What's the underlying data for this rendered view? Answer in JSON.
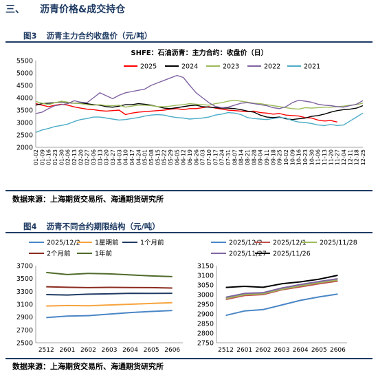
{
  "section": {
    "number": "三、",
    "title": "沥青价格&成交持仓"
  },
  "figure3": {
    "label": "图3",
    "caption": "沥青主力合约收盘价（元/吨）",
    "source": "数据来源：上海期货交易所、海通期货研究所"
  },
  "figure4": {
    "label": "图4",
    "caption": "沥青不同合约期限结构（元/吨）",
    "source": "数据来源：上海期货交易所、海通期货研究所"
  },
  "chart_data": [
    {
      "type": "line",
      "title": "SHFE：石油沥青：主力合约：收盘价（日）",
      "ylim": [
        2000,
        5500
      ],
      "yticks": [
        2000,
        2500,
        3000,
        3500,
        4000,
        4500,
        5000,
        5500
      ],
      "categories": [
        "01-02",
        "01-09",
        "01-16",
        "01-23",
        "01-30",
        "02-06",
        "02-13",
        "02-20",
        "02-27",
        "03-06",
        "03-13",
        "03-20",
        "03-27",
        "04-03",
        "04-10",
        "04-17",
        "04-24",
        "05-01",
        "05-08",
        "05-15",
        "05-22",
        "05-29",
        "06-05",
        "06-12",
        "06-19",
        "06-26",
        "07-03",
        "07-10",
        "07-17",
        "07-24",
        "07-31",
        "08-07",
        "08-14",
        "08-21",
        "08-28",
        "09-04",
        "09-11",
        "09-18",
        "09-25",
        "10-02",
        "10-09",
        "10-16",
        "10-23",
        "10-30",
        "11-06",
        "11-13",
        "11-20",
        "11-27",
        "12-04",
        "12-11",
        "12-18",
        "12-25"
      ],
      "legend_position": "top",
      "colors": {
        "2025": "#ff0000",
        "2024": "#000000",
        "2023": "#9bbb59",
        "2022": "#8064a2",
        "2021": "#4bacc6"
      },
      "series": [
        {
          "name": "2025",
          "values": [
            3760,
            3700,
            3640,
            3700,
            3740,
            3700,
            3630,
            3580,
            3540,
            3520,
            3480,
            3460,
            3480,
            3500,
            3320,
            3380,
            3420,
            3440,
            3460,
            3480,
            3500,
            3540,
            3560,
            3520,
            3560,
            3560,
            3600,
            3640,
            3580,
            3540,
            3500,
            3480,
            3460,
            3440,
            3460,
            3400,
            3380,
            3340,
            3360,
            3300,
            3280,
            3260,
            3200,
            3180,
            3100,
            3060,
            3080,
            3020,
            null,
            null,
            null,
            null
          ]
        },
        {
          "name": "2024",
          "values": [
            3700,
            3760,
            3780,
            3800,
            3840,
            3800,
            3780,
            3780,
            3760,
            3720,
            3700,
            3640,
            3620,
            3660,
            3720,
            3720,
            3760,
            3740,
            3700,
            3640,
            3580,
            3560,
            3600,
            3640,
            3680,
            3700,
            3640,
            3620,
            3600,
            3580,
            3580,
            3560,
            3520,
            3460,
            3420,
            3300,
            3220,
            3200,
            3220,
            3150,
            3120,
            3150,
            3180,
            3250,
            3280,
            3340,
            3420,
            3480,
            3520,
            3540,
            3580,
            3680
          ]
        },
        {
          "name": "2023",
          "values": [
            3850,
            3780,
            3720,
            3800,
            3860,
            3820,
            3780,
            3760,
            3720,
            3700,
            3720,
            3680,
            3680,
            3700,
            3620,
            3660,
            3700,
            3700,
            3680,
            3640,
            3640,
            3660,
            3700,
            3720,
            3760,
            3740,
            3720,
            3700,
            3760,
            3800,
            3860,
            3900,
            3860,
            3820,
            3780,
            3760,
            3720,
            3680,
            3640,
            3600,
            3560,
            3540,
            3600,
            3580,
            3600,
            3620,
            3620,
            3640,
            3660,
            3700,
            3720,
            3780
          ]
        },
        {
          "name": "2022",
          "values": [
            3360,
            3420,
            3560,
            3680,
            3720,
            3760,
            3880,
            3820,
            3800,
            4000,
            4200,
            4080,
            3960,
            4100,
            4200,
            4250,
            4300,
            4350,
            4500,
            4600,
            4700,
            4800,
            4900,
            4820,
            4500,
            4200,
            4000,
            3800,
            3650,
            3600,
            3620,
            3700,
            3780,
            3800,
            3760,
            3720,
            3680,
            3600,
            3560,
            3640,
            3800,
            3900,
            3860,
            3820,
            3740,
            3700,
            3680,
            3640,
            3620,
            3680,
            3740,
            3880
          ]
        },
        {
          "name": "2021",
          "values": [
            2600,
            2700,
            2760,
            2840,
            2880,
            2940,
            3040,
            3120,
            3160,
            3220,
            3220,
            3180,
            3140,
            3100,
            3120,
            3160,
            3200,
            3260,
            3300,
            3320,
            3300,
            3240,
            3200,
            3180,
            3140,
            3160,
            3180,
            3220,
            3300,
            3340,
            3400,
            3380,
            3320,
            3200,
            3160,
            3140,
            3120,
            3160,
            3200,
            3180,
            3080,
            3020,
            3000,
            2960,
            2900,
            2880,
            2920,
            2880,
            2900,
            3060,
            3220,
            3380
          ]
        }
      ]
    },
    {
      "type": "line",
      "categories": [
        "2512",
        "2601",
        "2602",
        "2603",
        "2604",
        "2605",
        "2606"
      ],
      "ylim": [
        2500,
        3700
      ],
      "yticks": [
        2500,
        2700,
        2900,
        3100,
        3300,
        3500,
        3700
      ],
      "legend_position": "top",
      "colors": {
        "2025/12/2": "#4a86c5",
        "1星期前": "#f7a33c",
        "1个月前": "#1f3b63",
        "2个月前": "#8b2b1f",
        "1年前": "#4f6b2a"
      },
      "series": [
        {
          "name": "2025/12/2",
          "values": [
            2892,
            2915,
            2922,
            2946,
            2970,
            2988,
            3003
          ]
        },
        {
          "name": "1星期前",
          "values": [
            3072,
            3080,
            3076,
            3088,
            3100,
            3112,
            3124
          ]
        },
        {
          "name": "1个月前",
          "values": [
            3250,
            3244,
            3256,
            3262,
            3270,
            3268,
            3270
          ]
        },
        {
          "name": "2个月前",
          "values": [
            3372,
            3364,
            3358,
            3362,
            3360,
            3358,
            3352
          ]
        },
        {
          "name": "1年前",
          "values": [
            3594,
            3562,
            3580,
            3572,
            3556,
            3540,
            3530
          ]
        }
      ]
    },
    {
      "type": "line",
      "categories": [
        "2512",
        "2601",
        "2602",
        "2603",
        "2604",
        "2605",
        "2606"
      ],
      "ylim": [
        2750,
        3150
      ],
      "yticks": [
        2750,
        2800,
        2850,
        2900,
        2950,
        3000,
        3050,
        3100,
        3150
      ],
      "legend_position": "top",
      "colors": {
        "2025/12/2": "#4a86c5",
        "2025/12/1": "#c0504d",
        "2025/11/28": "#9bbb59",
        "2025/11/27": "#8064a2",
        "2025/11/26": "#000000"
      },
      "series": [
        {
          "name": "2025/12/2",
          "values": [
            2892,
            2915,
            2922,
            2946,
            2970,
            2988,
            3003
          ]
        },
        {
          "name": "2025/12/1",
          "values": [
            2975,
            2995,
            3000,
            3025,
            3040,
            3056,
            3070
          ]
        },
        {
          "name": "2025/11/28",
          "values": [
            2980,
            3000,
            3005,
            3028,
            3046,
            3062,
            3076
          ]
        },
        {
          "name": "2025/11/27",
          "values": [
            2986,
            3006,
            3010,
            3034,
            3052,
            3068,
            3082
          ]
        },
        {
          "name": "2025/11/26",
          "values": [
            3037,
            3043,
            3038,
            3056,
            3066,
            3080,
            3100
          ]
        }
      ]
    }
  ]
}
